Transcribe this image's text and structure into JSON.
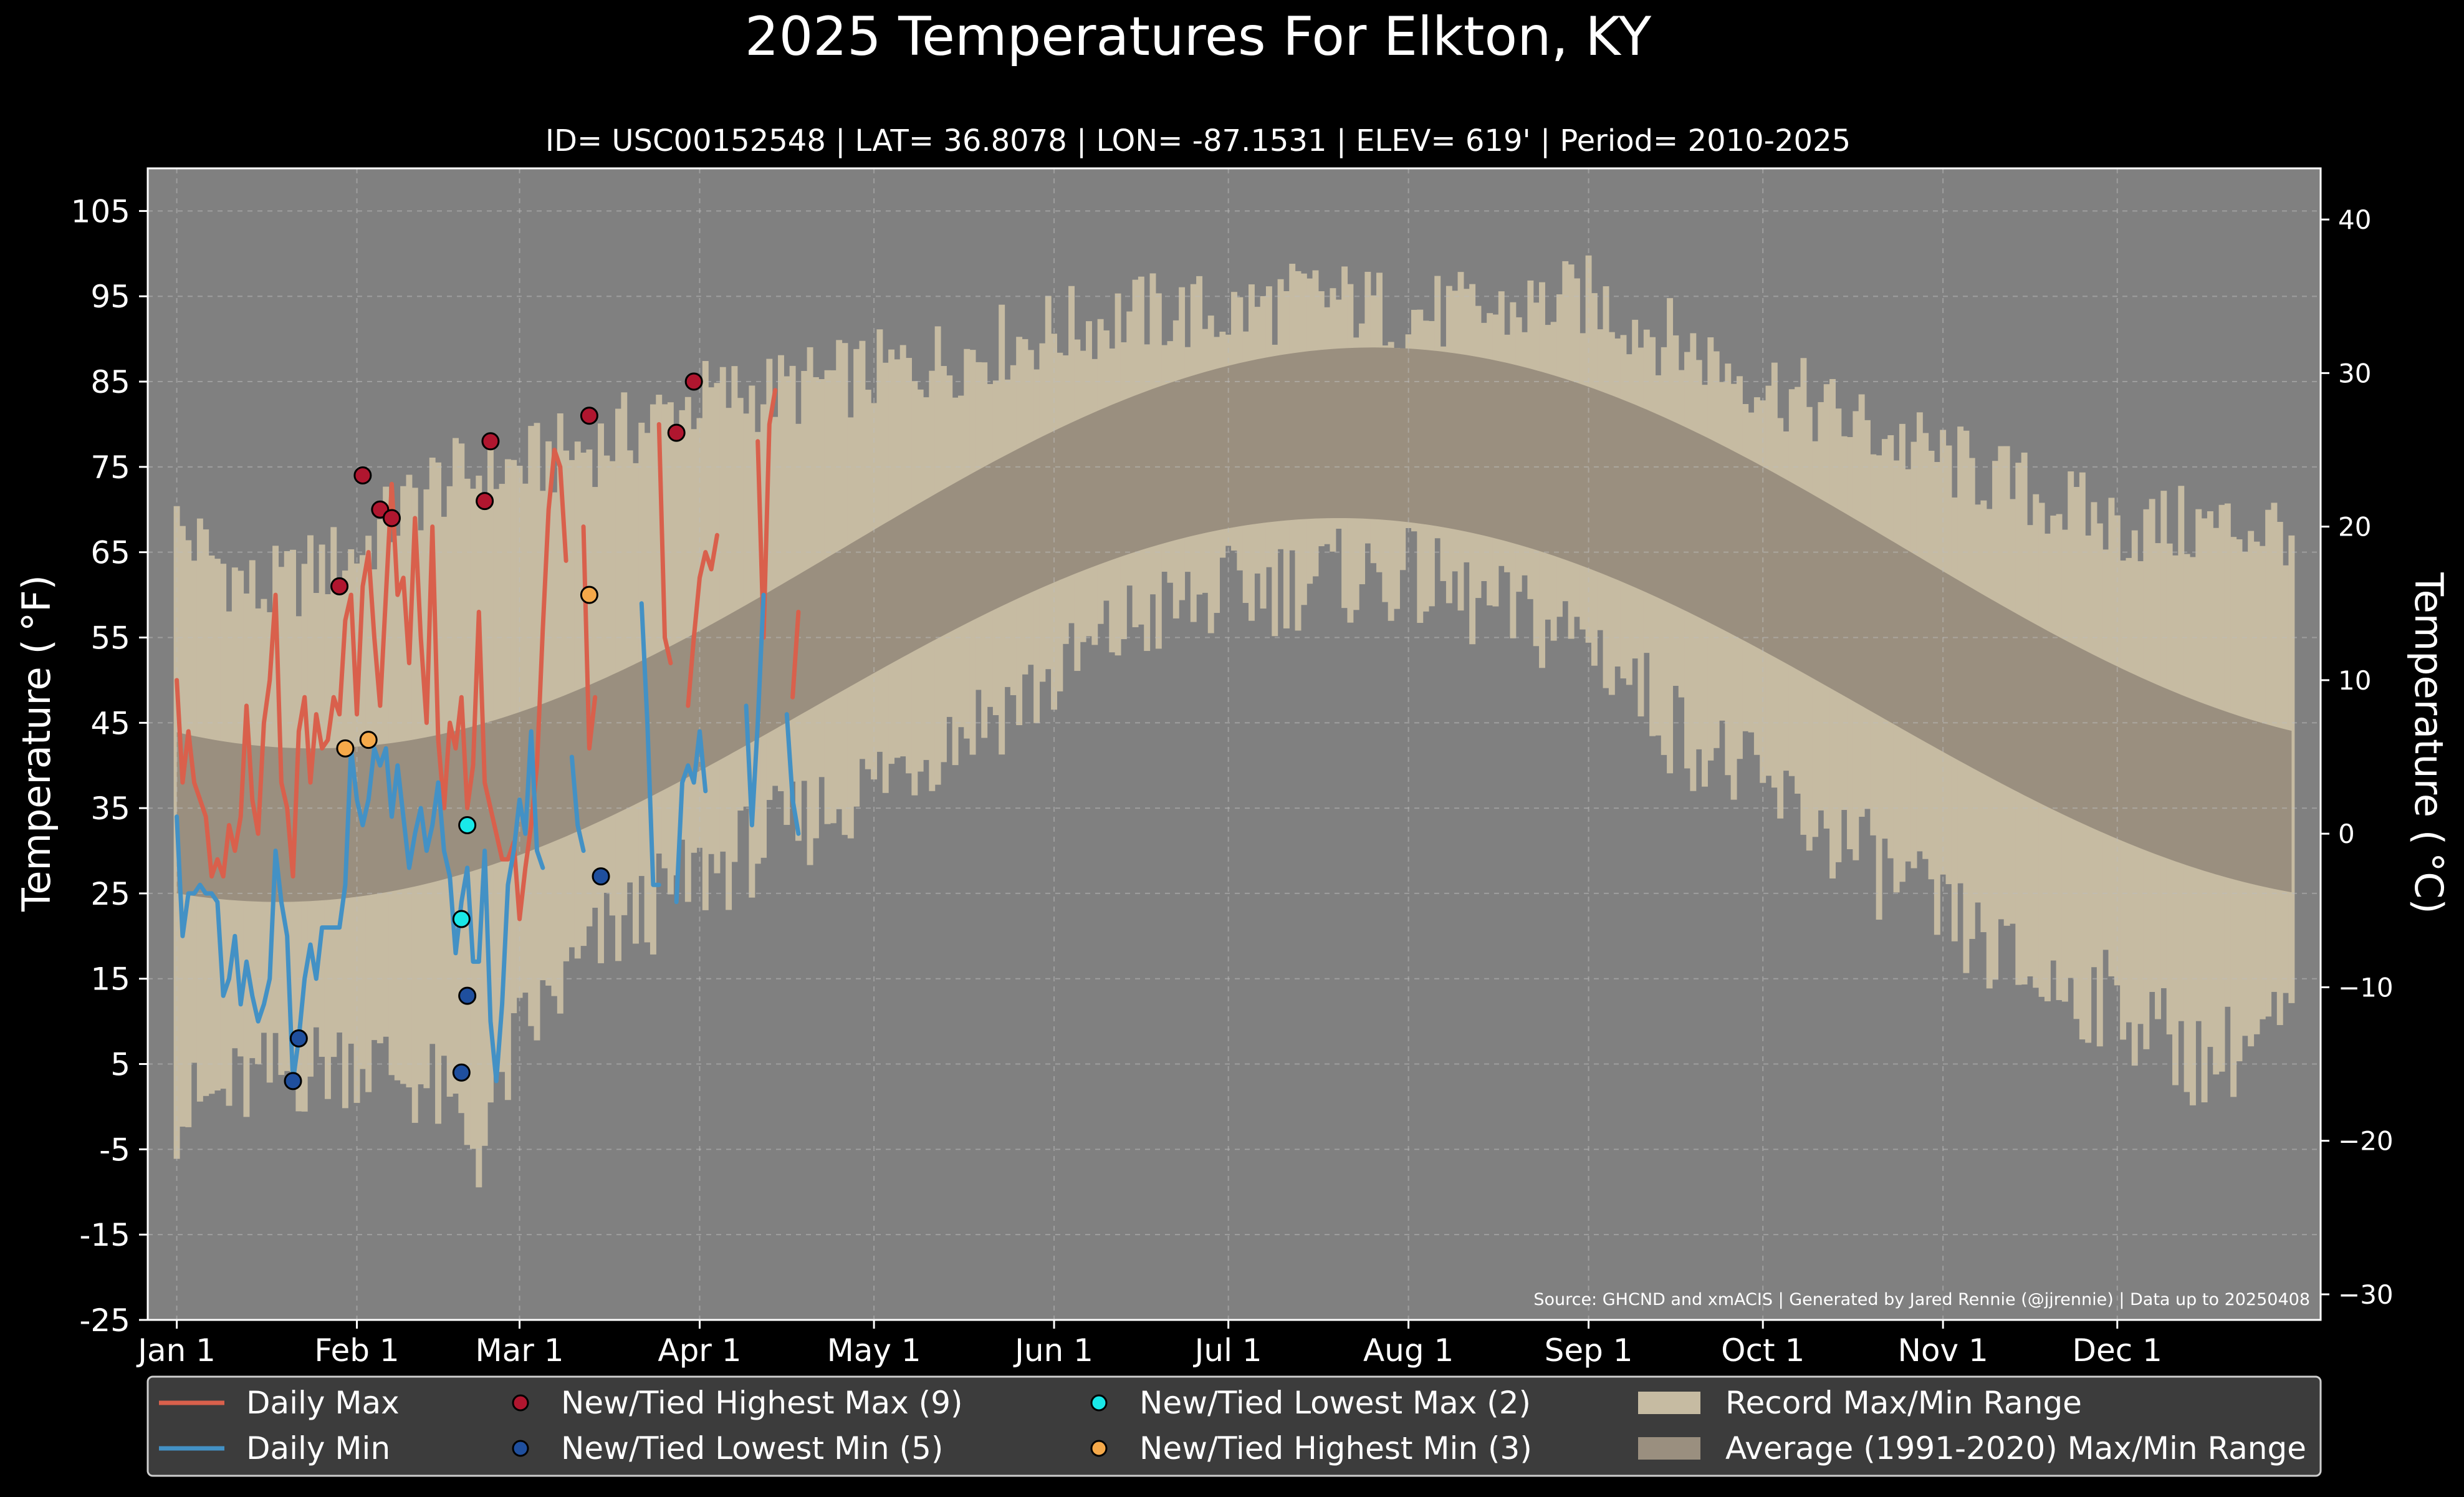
{
  "chart_data": {
    "type": "line",
    "title": "2025 Temperatures For Elkton, KY",
    "subtitle": "ID= USC00152548 | LAT= 36.8078 | LON= -87.1531 | ELEV= 619' | Period= 2010-2025",
    "ylabel_left": "Temperature ($^\\circ$F)",
    "ylabel_left_display": "Temperature ( °F)",
    "ylabel_right": "Temperature ( °C)",
    "source": "Source: GHCND and xmACIS | Generated by Jared Rennie (@jjrennie) | Data up to 20250408",
    "x_tick_labels": [
      "Jan 1",
      "Feb 1",
      "Mar 1",
      "Apr 1",
      "May 1",
      "Jun 1",
      "Jul 1",
      "Aug 1",
      "Sep 1",
      "Oct 1",
      "Nov 1",
      "Dec 1"
    ],
    "x_tick_days": [
      1,
      32,
      60,
      91,
      121,
      152,
      182,
      213,
      244,
      274,
      305,
      335
    ],
    "xlim_days": [
      -4,
      370
    ],
    "y_ticks_f": [
      105,
      95,
      85,
      75,
      65,
      55,
      45,
      35,
      25,
      15,
      5,
      -5,
      -15,
      -25
    ],
    "ylim_f": [
      -25,
      110
    ],
    "y_ticks_c": [
      40,
      30,
      20,
      10,
      0,
      -10,
      -20,
      -30
    ],
    "grid": true,
    "legend_placement": "bottom",
    "colors": {
      "background": "#000000",
      "plot_bg": "#808080",
      "record_band": "#c6bba2",
      "normal_band": "#9a8f7f",
      "daily_max": "#d9604c",
      "daily_min": "#4391c5",
      "highest_max": "#b0162f",
      "lowest_min": "#1f4f9e",
      "lowest_max": "#19e8e8",
      "highest_min": "#f5a94a",
      "legend_bg": "#3c3c3c"
    },
    "normal_band": {
      "name": "Average (1991-2020) Max/Min Range",
      "max_low": 42,
      "max_high": 89,
      "max_peak_day": 207,
      "min_low": 24,
      "min_high": 69,
      "min_peak_day": 201
    },
    "record_band": {
      "name": "Record Max/Min Range",
      "record_max_anchors": [
        [
          1,
          68
        ],
        [
          15,
          60
        ],
        [
          32,
          65
        ],
        [
          45,
          73
        ],
        [
          60,
          75
        ],
        [
          75,
          78
        ],
        [
          91,
          83
        ],
        [
          105,
          84
        ],
        [
          121,
          86
        ],
        [
          135,
          88
        ],
        [
          152,
          91
        ],
        [
          166,
          93
        ],
        [
          182,
          93
        ],
        [
          197,
          95
        ],
        [
          213,
          93
        ],
        [
          228,
          93
        ],
        [
          244,
          95
        ],
        [
          258,
          90
        ],
        [
          274,
          85
        ],
        [
          290,
          80
        ],
        [
          305,
          76
        ],
        [
          320,
          72
        ],
        [
          335,
          68
        ],
        [
          350,
          68
        ],
        [
          365,
          68
        ]
      ],
      "record_min_anchors": [
        [
          1,
          -1
        ],
        [
          15,
          3
        ],
        [
          32,
          6
        ],
        [
          45,
          2
        ],
        [
          53,
          -5
        ],
        [
          60,
          8
        ],
        [
          75,
          20
        ],
        [
          91,
          27
        ],
        [
          105,
          32
        ],
        [
          121,
          38
        ],
        [
          135,
          44
        ],
        [
          152,
          50
        ],
        [
          166,
          57
        ],
        [
          182,
          60
        ],
        [
          197,
          62
        ],
        [
          213,
          62
        ],
        [
          228,
          58
        ],
        [
          244,
          55
        ],
        [
          258,
          45
        ],
        [
          274,
          37
        ],
        [
          290,
          30
        ],
        [
          305,
          22
        ],
        [
          320,
          15
        ],
        [
          335,
          12
        ],
        [
          350,
          5
        ],
        [
          365,
          10
        ]
      ]
    },
    "series": [
      {
        "name": "Daily Max",
        "values": [
          50,
          38,
          44,
          38,
          36,
          34,
          27,
          29,
          27,
          33,
          30,
          34,
          47,
          36,
          32,
          45,
          50,
          60,
          38,
          35,
          27,
          44,
          48,
          38,
          46,
          42,
          43,
          48,
          46,
          57,
          60,
          46,
          61,
          65,
          55,
          47,
          60,
          73,
          60,
          62,
          52,
          69,
          55,
          45,
          68,
          43,
          35,
          45,
          42,
          48,
          35,
          40,
          58,
          38,
          35,
          32,
          29,
          29,
          31,
          22,
          28,
          33,
          40,
          56,
          70,
          77,
          75,
          64,
          null,
          null,
          68,
          42,
          48,
          null,
          null,
          null,
          null,
          null,
          null,
          null,
          null,
          null,
          null,
          80,
          55,
          52,
          null,
          null,
          47,
          55,
          62,
          65,
          63,
          67,
          null,
          null,
          null,
          null,
          null,
          null,
          78,
          55,
          80,
          84,
          null,
          null,
          48,
          58
        ]
      },
      {
        "name": "Daily Min",
        "values": [
          34,
          20,
          25,
          25,
          26,
          25,
          25,
          24,
          13,
          15,
          20,
          12,
          17,
          13,
          10,
          12,
          15,
          30,
          24,
          20,
          3,
          8,
          15,
          19,
          15,
          21,
          21,
          21,
          21,
          26,
          42,
          36,
          33,
          36,
          42,
          40,
          42,
          34,
          40,
          34,
          28,
          32,
          35,
          30,
          33,
          38,
          30,
          27,
          18,
          24,
          28,
          17,
          17,
          30,
          10,
          3,
          12,
          26,
          30,
          36,
          32,
          44,
          30,
          28,
          null,
          null,
          null,
          null,
          41,
          33,
          30,
          null,
          null,
          null,
          null,
          null,
          null,
          null,
          null,
          null,
          59,
          45,
          26,
          26,
          null,
          null,
          24,
          38,
          40,
          38,
          44,
          37,
          null,
          null,
          null,
          null,
          null,
          null,
          47,
          33,
          45,
          60,
          null,
          null,
          null,
          46,
          36,
          32
        ]
      }
    ],
    "records": [
      {
        "name": "New/Tied Highest Max (9)",
        "points": [
          [
            29,
            61
          ],
          [
            33,
            74
          ],
          [
            36,
            70
          ],
          [
            38,
            69
          ],
          [
            54,
            71
          ],
          [
            55,
            78
          ],
          [
            72,
            81
          ],
          [
            87,
            79
          ],
          [
            90,
            85
          ]
        ]
      },
      {
        "name": "New/Tied Lowest Min (5)",
        "points": [
          [
            21,
            3
          ],
          [
            22,
            8
          ],
          [
            50,
            4
          ],
          [
            51,
            13
          ],
          [
            74,
            27
          ]
        ]
      },
      {
        "name": "New/Tied Lowest Max (2)",
        "points": [
          [
            50,
            22
          ],
          [
            51,
            33
          ]
        ]
      },
      {
        "name": "New/Tied Highest Min (3)",
        "points": [
          [
            30,
            42
          ],
          [
            34,
            43
          ],
          [
            72,
            60
          ]
        ]
      }
    ]
  },
  "legend": {
    "items": [
      {
        "label": "Daily Max",
        "kind": "line",
        "color": "#d9604c"
      },
      {
        "label": "Daily Min",
        "kind": "line",
        "color": "#4391c5"
      },
      {
        "label": "New/Tied Highest Max (9)",
        "kind": "dot",
        "color": "#b0162f"
      },
      {
        "label": "New/Tied Lowest Min (5)",
        "kind": "dot",
        "color": "#1f4f9e"
      },
      {
        "label": "New/Tied Lowest Max (2)",
        "kind": "dot",
        "color": "#19e8e8"
      },
      {
        "label": "New/Tied Highest Min (3)",
        "kind": "dot",
        "color": "#f5a94a"
      },
      {
        "label": "Record Max/Min Range",
        "kind": "patch",
        "color": "#c6bba2"
      },
      {
        "label": "Average (1991-2020) Max/Min Range",
        "kind": "patch",
        "color": "#9a8f7f"
      }
    ]
  }
}
